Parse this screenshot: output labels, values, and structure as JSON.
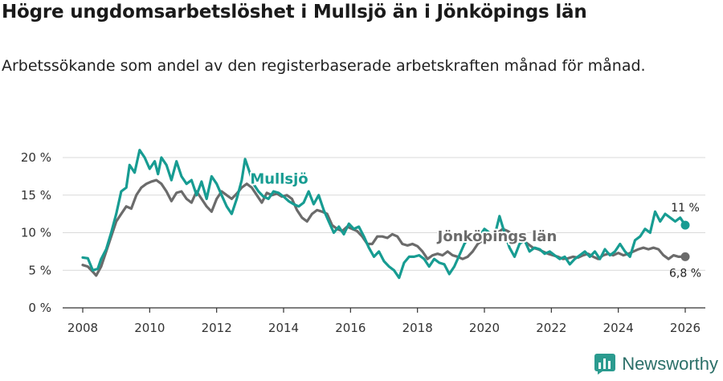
{
  "title": "Högre ungdomsarbetslöshet i Mullsjö än i Jönköpings län",
  "subtitle": "Arbetssökande som andel av den registerbaserade arbetskraften månad för månad.",
  "brand": "Newsworthy",
  "colors": {
    "mullsjo": "#179c92",
    "lan": "#6b6b6b",
    "grid": "#d9d9d9",
    "axis": "#333333"
  },
  "chart_data": {
    "type": "line",
    "x_unit": "år",
    "xlim": [
      2007.4,
      2026.6
    ],
    "ylim": [
      0,
      20
    ],
    "x_ticks": [
      2008,
      2010,
      2012,
      2014,
      2016,
      2018,
      2020,
      2022,
      2024,
      2026
    ],
    "y_ticks": [
      {
        "value": 0,
        "label": "0 %"
      },
      {
        "value": 5,
        "label": "5 %"
      },
      {
        "value": 10,
        "label": "10 %"
      },
      {
        "value": 15,
        "label": "15 %"
      },
      {
        "value": 20,
        "label": "20 %"
      }
    ],
    "series": [
      {
        "name": "Mullsjö",
        "color": "#179c92",
        "end_label": "11 %",
        "points": [
          [
            2008.0,
            6.7
          ],
          [
            2008.15,
            6.6
          ],
          [
            2008.3,
            5.0
          ],
          [
            2008.45,
            5.2
          ],
          [
            2008.55,
            6.5
          ],
          [
            2008.7,
            7.8
          ],
          [
            2008.85,
            10.0
          ],
          [
            2009.0,
            12.5
          ],
          [
            2009.15,
            15.5
          ],
          [
            2009.3,
            16.0
          ],
          [
            2009.4,
            19.0
          ],
          [
            2009.55,
            18.0
          ],
          [
            2009.7,
            21.0
          ],
          [
            2009.85,
            20.0
          ],
          [
            2010.0,
            18.5
          ],
          [
            2010.15,
            19.5
          ],
          [
            2010.25,
            17.8
          ],
          [
            2010.35,
            20.0
          ],
          [
            2010.5,
            19.0
          ],
          [
            2010.65,
            17.0
          ],
          [
            2010.8,
            19.5
          ],
          [
            2010.95,
            17.5
          ],
          [
            2011.1,
            16.5
          ],
          [
            2011.25,
            17.0
          ],
          [
            2011.4,
            15.0
          ],
          [
            2011.55,
            16.8
          ],
          [
            2011.7,
            14.5
          ],
          [
            2011.85,
            17.5
          ],
          [
            2012.0,
            16.5
          ],
          [
            2012.15,
            15.0
          ],
          [
            2012.3,
            13.5
          ],
          [
            2012.45,
            12.5
          ],
          [
            2012.6,
            14.5
          ],
          [
            2012.75,
            17.0
          ],
          [
            2012.85,
            19.8
          ],
          [
            2012.95,
            18.5
          ],
          [
            2013.1,
            16.5
          ],
          [
            2013.25,
            15.5
          ],
          [
            2013.4,
            14.8
          ],
          [
            2013.55,
            14.5
          ],
          [
            2013.7,
            15.5
          ],
          [
            2013.85,
            15.3
          ],
          [
            2014.0,
            14.8
          ],
          [
            2014.15,
            14.2
          ],
          [
            2014.3,
            13.8
          ],
          [
            2014.45,
            13.5
          ],
          [
            2014.6,
            14.0
          ],
          [
            2014.75,
            15.5
          ],
          [
            2014.9,
            13.8
          ],
          [
            2015.05,
            15.0
          ],
          [
            2015.2,
            13.0
          ],
          [
            2015.35,
            11.5
          ],
          [
            2015.5,
            10.0
          ],
          [
            2015.65,
            10.8
          ],
          [
            2015.8,
            9.8
          ],
          [
            2015.95,
            11.2
          ],
          [
            2016.1,
            10.5
          ],
          [
            2016.25,
            10.8
          ],
          [
            2016.4,
            9.5
          ],
          [
            2016.55,
            8.0
          ],
          [
            2016.7,
            6.8
          ],
          [
            2016.85,
            7.5
          ],
          [
            2017.0,
            6.2
          ],
          [
            2017.15,
            5.5
          ],
          [
            2017.3,
            5.0
          ],
          [
            2017.45,
            4.0
          ],
          [
            2017.6,
            6.0
          ],
          [
            2017.75,
            6.8
          ],
          [
            2017.9,
            6.8
          ],
          [
            2018.05,
            7.0
          ],
          [
            2018.2,
            6.5
          ],
          [
            2018.35,
            5.5
          ],
          [
            2018.5,
            6.5
          ],
          [
            2018.65,
            6.0
          ],
          [
            2018.8,
            5.8
          ],
          [
            2018.95,
            4.5
          ],
          [
            2019.1,
            5.5
          ],
          [
            2019.25,
            7.0
          ],
          [
            2019.4,
            8.5
          ],
          [
            2019.55,
            9.5
          ],
          [
            2019.7,
            10.0
          ],
          [
            2019.85,
            9.5
          ],
          [
            2020.0,
            10.5
          ],
          [
            2020.15,
            10.0
          ],
          [
            2020.3,
            9.5
          ],
          [
            2020.45,
            12.2
          ],
          [
            2020.6,
            10.0
          ],
          [
            2020.75,
            8.0
          ],
          [
            2020.9,
            6.8
          ],
          [
            2021.05,
            8.5
          ],
          [
            2021.2,
            9.0
          ],
          [
            2021.35,
            7.5
          ],
          [
            2021.5,
            8.0
          ],
          [
            2021.65,
            7.8
          ],
          [
            2021.8,
            7.2
          ],
          [
            2021.95,
            7.5
          ],
          [
            2022.1,
            7.0
          ],
          [
            2022.25,
            6.5
          ],
          [
            2022.4,
            6.8
          ],
          [
            2022.55,
            5.8
          ],
          [
            2022.7,
            6.5
          ],
          [
            2022.85,
            7.0
          ],
          [
            2023.0,
            7.5
          ],
          [
            2023.15,
            6.8
          ],
          [
            2023.3,
            7.5
          ],
          [
            2023.45,
            6.5
          ],
          [
            2023.6,
            7.8
          ],
          [
            2023.75,
            7.0
          ],
          [
            2023.9,
            7.5
          ],
          [
            2024.05,
            8.5
          ],
          [
            2024.2,
            7.5
          ],
          [
            2024.35,
            6.8
          ],
          [
            2024.5,
            9.0
          ],
          [
            2024.65,
            9.5
          ],
          [
            2024.8,
            10.5
          ],
          [
            2024.95,
            10.0
          ],
          [
            2025.1,
            12.8
          ],
          [
            2025.25,
            11.5
          ],
          [
            2025.4,
            12.5
          ],
          [
            2025.55,
            12.0
          ],
          [
            2025.7,
            11.5
          ],
          [
            2025.85,
            12.0
          ],
          [
            2026.0,
            11.0
          ]
        ]
      },
      {
        "name": "Jönköpings län",
        "color": "#6b6b6b",
        "end_label": "6,8 %",
        "points": [
          [
            2008.0,
            5.7
          ],
          [
            2008.15,
            5.5
          ],
          [
            2008.3,
            4.8
          ],
          [
            2008.4,
            4.3
          ],
          [
            2008.55,
            5.5
          ],
          [
            2008.7,
            7.5
          ],
          [
            2008.85,
            9.5
          ],
          [
            2009.0,
            11.5
          ],
          [
            2009.15,
            12.5
          ],
          [
            2009.3,
            13.5
          ],
          [
            2009.45,
            13.2
          ],
          [
            2009.6,
            15.0
          ],
          [
            2009.75,
            16.0
          ],
          [
            2009.9,
            16.5
          ],
          [
            2010.05,
            16.8
          ],
          [
            2010.2,
            17.0
          ],
          [
            2010.35,
            16.5
          ],
          [
            2010.5,
            15.5
          ],
          [
            2010.65,
            14.2
          ],
          [
            2010.8,
            15.3
          ],
          [
            2010.95,
            15.5
          ],
          [
            2011.1,
            14.5
          ],
          [
            2011.25,
            14.0
          ],
          [
            2011.4,
            15.5
          ],
          [
            2011.55,
            14.5
          ],
          [
            2011.7,
            13.5
          ],
          [
            2011.85,
            12.8
          ],
          [
            2012.0,
            14.5
          ],
          [
            2012.15,
            15.5
          ],
          [
            2012.3,
            15.0
          ],
          [
            2012.45,
            14.5
          ],
          [
            2012.6,
            15.2
          ],
          [
            2012.75,
            16.0
          ],
          [
            2012.9,
            16.5
          ],
          [
            2013.05,
            16.0
          ],
          [
            2013.2,
            15.0
          ],
          [
            2013.35,
            14.0
          ],
          [
            2013.5,
            15.3
          ],
          [
            2013.65,
            15.0
          ],
          [
            2013.8,
            15.2
          ],
          [
            2013.95,
            14.8
          ],
          [
            2014.1,
            15.0
          ],
          [
            2014.25,
            14.5
          ],
          [
            2014.4,
            13.0
          ],
          [
            2014.55,
            12.0
          ],
          [
            2014.7,
            11.5
          ],
          [
            2014.85,
            12.5
          ],
          [
            2015.0,
            13.0
          ],
          [
            2015.15,
            12.8
          ],
          [
            2015.3,
            12.5
          ],
          [
            2015.45,
            11.0
          ],
          [
            2015.6,
            10.5
          ],
          [
            2015.75,
            10.2
          ],
          [
            2015.9,
            10.8
          ],
          [
            2016.05,
            10.5
          ],
          [
            2016.2,
            10.2
          ],
          [
            2016.35,
            9.5
          ],
          [
            2016.5,
            8.5
          ],
          [
            2016.65,
            8.5
          ],
          [
            2016.8,
            9.5
          ],
          [
            2016.95,
            9.5
          ],
          [
            2017.1,
            9.3
          ],
          [
            2017.25,
            9.8
          ],
          [
            2017.4,
            9.5
          ],
          [
            2017.55,
            8.5
          ],
          [
            2017.7,
            8.3
          ],
          [
            2017.85,
            8.5
          ],
          [
            2018.0,
            8.2
          ],
          [
            2018.15,
            7.5
          ],
          [
            2018.3,
            6.5
          ],
          [
            2018.45,
            7.0
          ],
          [
            2018.6,
            7.2
          ],
          [
            2018.75,
            7.0
          ],
          [
            2018.9,
            7.5
          ],
          [
            2019.05,
            7.0
          ],
          [
            2019.2,
            6.8
          ],
          [
            2019.35,
            6.5
          ],
          [
            2019.5,
            6.8
          ],
          [
            2019.65,
            7.5
          ],
          [
            2019.8,
            8.5
          ],
          [
            2019.95,
            9.0
          ],
          [
            2020.1,
            9.5
          ],
          [
            2020.25,
            9.2
          ],
          [
            2020.4,
            10.0
          ],
          [
            2020.55,
            10.5
          ],
          [
            2020.7,
            10.2
          ],
          [
            2020.85,
            9.8
          ],
          [
            2021.0,
            9.5
          ],
          [
            2021.15,
            9.0
          ],
          [
            2021.3,
            8.5
          ],
          [
            2021.45,
            8.0
          ],
          [
            2021.6,
            7.8
          ],
          [
            2021.75,
            7.5
          ],
          [
            2021.9,
            7.2
          ],
          [
            2022.05,
            7.0
          ],
          [
            2022.2,
            6.8
          ],
          [
            2022.35,
            6.5
          ],
          [
            2022.5,
            6.6
          ],
          [
            2022.65,
            6.8
          ],
          [
            2022.8,
            6.7
          ],
          [
            2022.95,
            7.0
          ],
          [
            2023.1,
            7.2
          ],
          [
            2023.25,
            6.8
          ],
          [
            2023.4,
            6.5
          ],
          [
            2023.55,
            7.0
          ],
          [
            2023.7,
            7.2
          ],
          [
            2023.85,
            7.0
          ],
          [
            2024.0,
            7.3
          ],
          [
            2024.15,
            7.0
          ],
          [
            2024.3,
            7.2
          ],
          [
            2024.45,
            7.5
          ],
          [
            2024.6,
            7.8
          ],
          [
            2024.75,
            8.0
          ],
          [
            2024.9,
            7.8
          ],
          [
            2025.05,
            8.0
          ],
          [
            2025.2,
            7.8
          ],
          [
            2025.35,
            7.0
          ],
          [
            2025.5,
            6.5
          ],
          [
            2025.65,
            7.0
          ],
          [
            2025.8,
            6.8
          ],
          [
            2026.0,
            6.8
          ]
        ]
      }
    ],
    "series_labels": [
      {
        "text": "Mullsjö",
        "series": 0,
        "x": 2013.0,
        "y": 16.5
      },
      {
        "text": "Jönköpings län",
        "series": 1,
        "x": 2018.6,
        "y": 8.9
      }
    ]
  }
}
